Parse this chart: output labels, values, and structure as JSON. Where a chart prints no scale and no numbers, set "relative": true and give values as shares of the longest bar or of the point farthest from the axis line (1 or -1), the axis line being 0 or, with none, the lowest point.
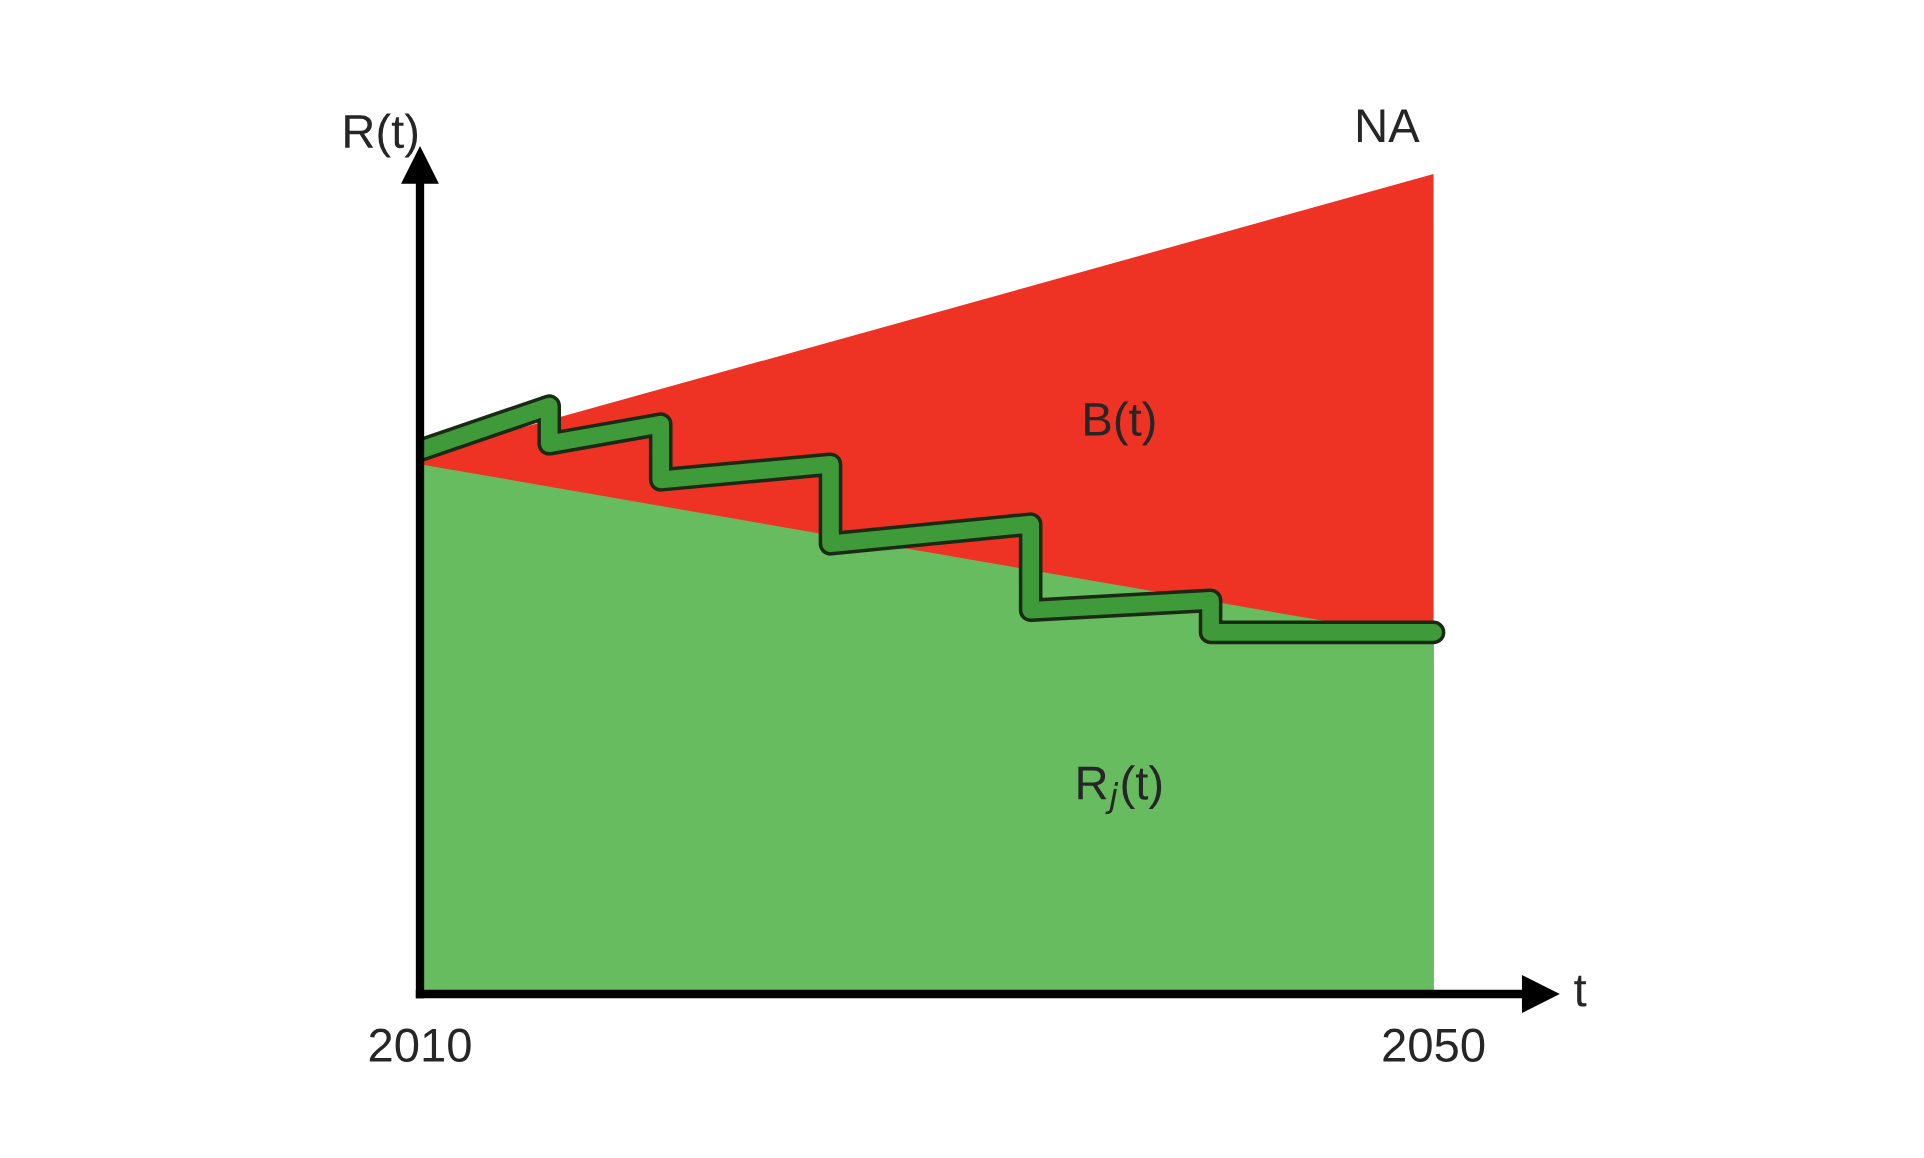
{
  "chart_data": {
    "type": "area",
    "relative": true,
    "x": [
      2010,
      2050
    ],
    "xlim": [
      2010,
      2054.2
    ],
    "xticks": [
      2010,
      2050
    ],
    "xlabel": "t",
    "ylabel": "R(t)",
    "tick_labels": "x",
    "grid": false,
    "legend": false,
    "series": [
      {
        "name": "B(t)",
        "color": "#ee3224",
        "values": [
          0.656,
          1.0
        ]
      },
      {
        "name": "R$_{j}$(t)",
        "color": "#66bc5f",
        "values": [
          0.646,
          0.432
        ]
      },
      {
        "type": "line",
        "color": "#3f9a3a",
        "x": [
          2010,
          2015.1,
          2015.1,
          2019.5,
          2019.5,
          2026.2,
          2026.2,
          2034.1,
          2034.1,
          2041.2,
          2041.2,
          2050
        ],
        "values": [
          0.663,
          0.717,
          0.671,
          0.695,
          0.627,
          0.646,
          0.549,
          0.573,
          0.468,
          0.48,
          0.441,
          0.441
        ]
      }
    ],
    "annotations": [
      {
        "text": "NA",
        "x": 2050,
        "y": 1.0
      }
    ]
  }
}
